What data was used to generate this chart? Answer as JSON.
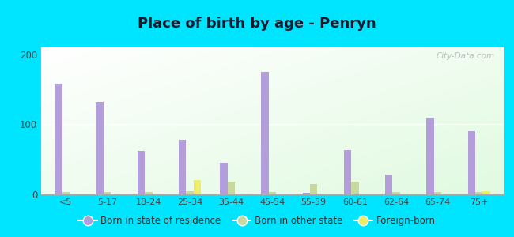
{
  "title": "Place of birth by age - Penryn",
  "categories": [
    "<5",
    "5-17",
    "18-24",
    "25-34",
    "35-44",
    "45-54",
    "55-59",
    "60-61",
    "62-64",
    "65-74",
    "75+"
  ],
  "born_in_state": [
    158,
    132,
    62,
    78,
    45,
    175,
    2,
    63,
    28,
    110,
    90
  ],
  "born_other_state": [
    3,
    3,
    3,
    5,
    18,
    3,
    15,
    18,
    3,
    3,
    3
  ],
  "foreign_born": [
    0,
    0,
    0,
    20,
    0,
    0,
    0,
    0,
    0,
    0,
    5
  ],
  "bar_width": 0.18,
  "ylim": [
    0,
    210
  ],
  "yticks": [
    0,
    100,
    200
  ],
  "color_state": "#b39ddb",
  "color_other": "#c8d9a0",
  "color_foreign": "#eded6a",
  "background": "#00e5ff",
  "plot_bg_topleft": "#f0faf0",
  "plot_bg_bottomright": "#d0f0d8",
  "watermark": "City-Data.com",
  "legend_labels": [
    "Born in state of residence",
    "Born in other state",
    "Foreign-born"
  ]
}
